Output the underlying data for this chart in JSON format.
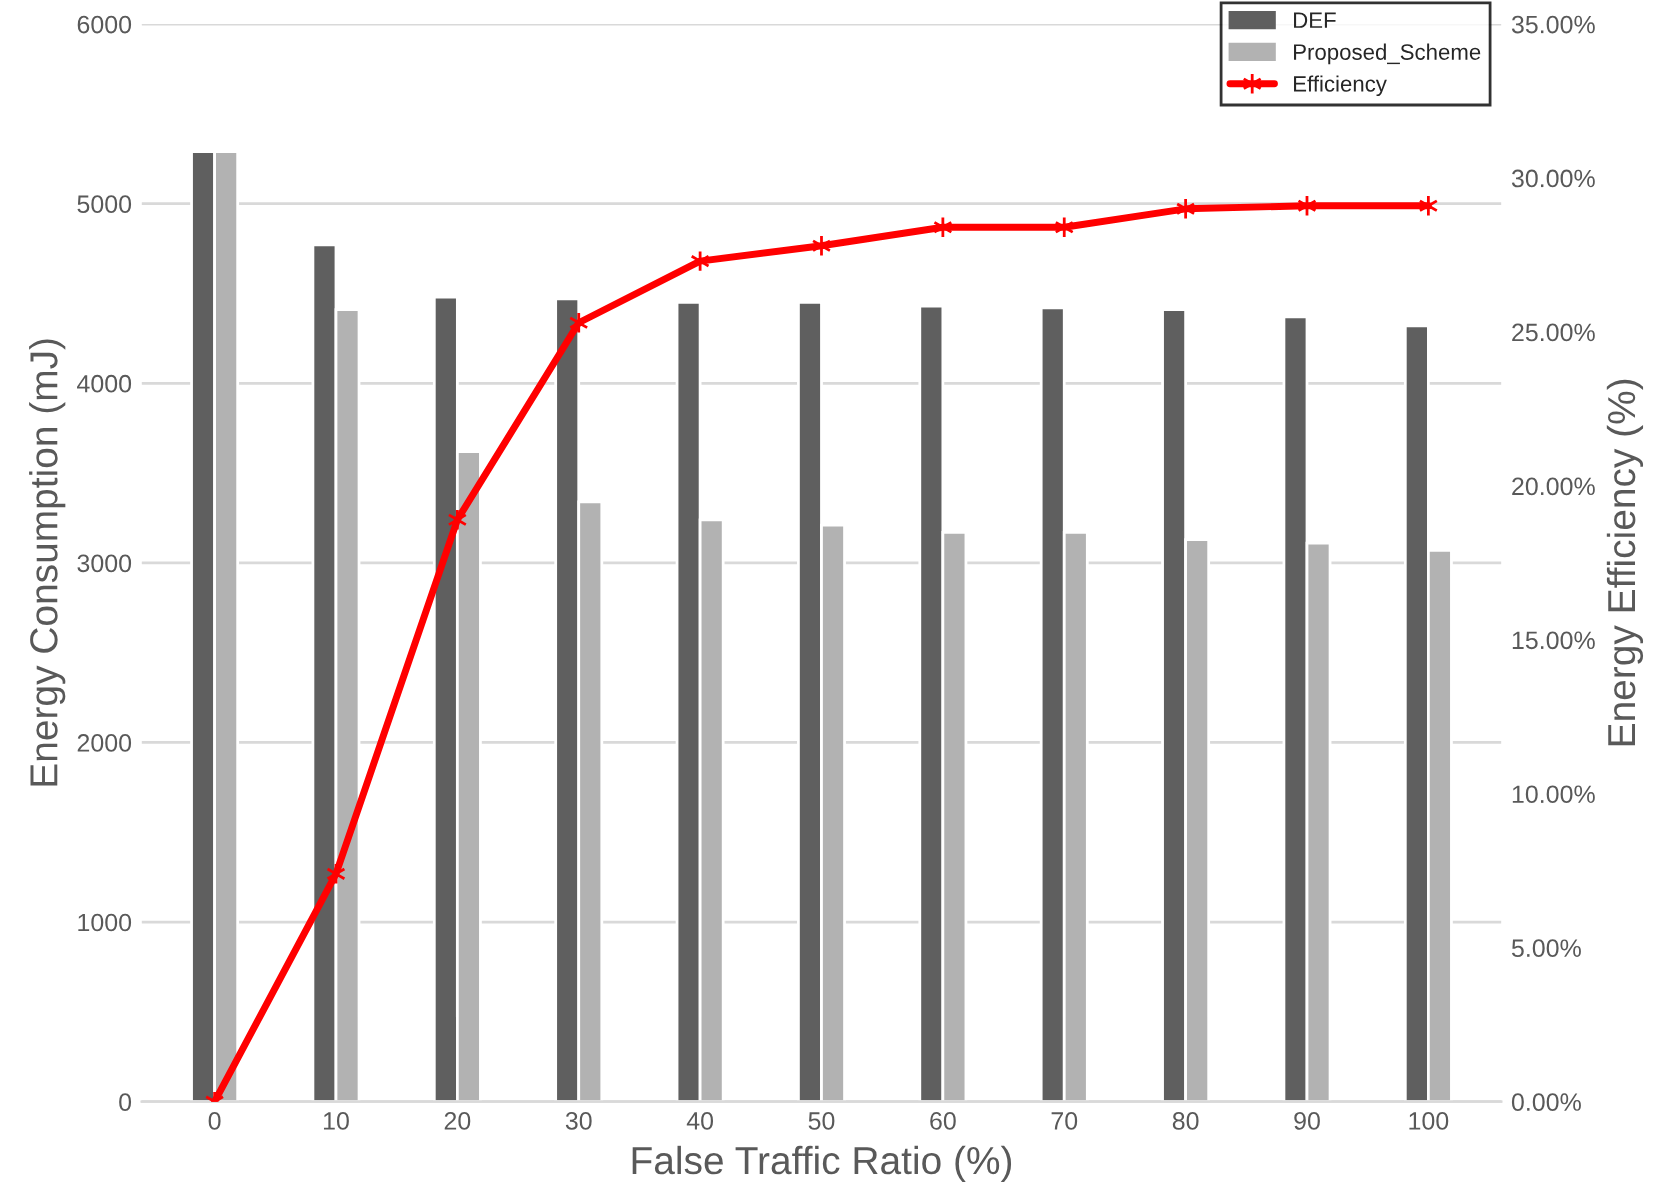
{
  "chart_data": {
    "type": "bar",
    "categories": [
      "0",
      "10",
      "20",
      "30",
      "40",
      "50",
      "60",
      "70",
      "80",
      "90",
      "100"
    ],
    "xlabel": "False Traffic Ratio (%)",
    "ylabel": "Energy Consumption (mJ)",
    "y2label": "Energy Efficiency (%)",
    "series": [
      {
        "name": "DEF",
        "color": "#5f5f5f",
        "values": [
          5290,
          4770,
          4480,
          4470,
          4450,
          4450,
          4430,
          4420,
          4410,
          4370,
          4320
        ]
      },
      {
        "name": "Proposed_Scheme",
        "color": "#b2b2b2",
        "values": [
          5290,
          4410,
          3620,
          3340,
          3240,
          3210,
          3170,
          3170,
          3130,
          3110,
          3070
        ]
      },
      {
        "name": "Efficiency",
        "type": "line",
        "axis": "y2",
        "color": "#ff0000",
        "marker": "cross",
        "line_style": "solid",
        "values": [
          0,
          7.4,
          18.9,
          25.3,
          27.3,
          27.8,
          28.4,
          28.4,
          29.0,
          29.1,
          29.1
        ]
      }
    ],
    "ylim": [
      0,
      6000
    ],
    "yticks": [
      0,
      1000,
      2000,
      3000,
      4000,
      5000,
      6000
    ],
    "y2lim": [
      0,
      35
    ],
    "y2ticks": [
      {
        "value": 0,
        "label": "0.00%"
      },
      {
        "value": 5,
        "label": "5.00%"
      },
      {
        "value": 10,
        "label": "10.00%"
      },
      {
        "value": 15,
        "label": "15.00%"
      },
      {
        "value": 20,
        "label": "20.00%"
      },
      {
        "value": 25,
        "label": "25.00%"
      },
      {
        "value": 30,
        "label": "30.00%"
      },
      {
        "value": 35,
        "label": "35.00%"
      }
    ],
    "grid": "y",
    "legend": "top right"
  }
}
